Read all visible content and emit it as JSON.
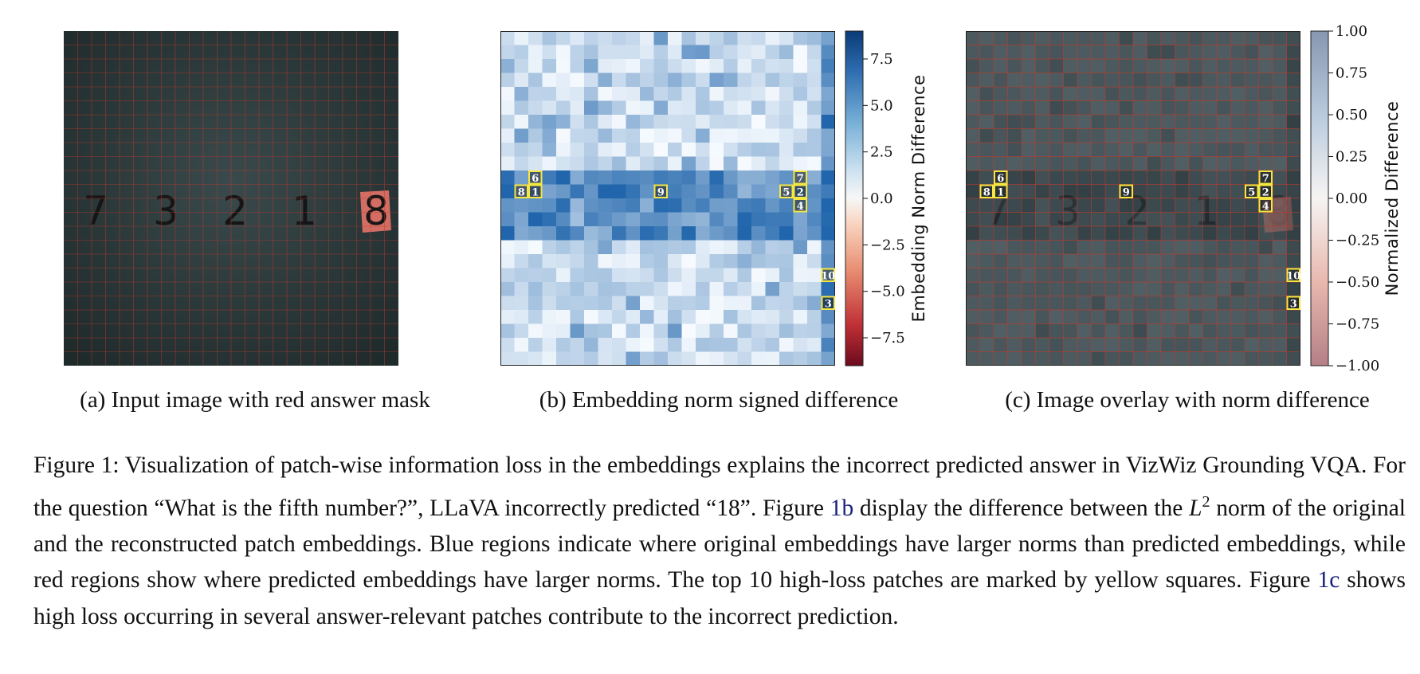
{
  "panels": {
    "a": {
      "caption": "(a) Input image with red answer mask",
      "digits": [
        "7",
        "3",
        "2",
        "1",
        "8"
      ],
      "masked_digit_index": 4
    },
    "b": {
      "caption": "(b) Embedding norm signed difference",
      "colorbar": {
        "label": "Embedding Norm Difference",
        "ticks": [
          "7.5",
          "5.0",
          "2.5",
          "0.0",
          "−2.5",
          "−5.0",
          "−7.5"
        ],
        "tick_values": [
          7.5,
          5.0,
          2.5,
          0.0,
          -2.5,
          -5.0,
          -7.5
        ],
        "range": [
          -9,
          9
        ],
        "colormap": "RdBu"
      }
    },
    "c": {
      "caption": "(c) Image overlay with norm difference",
      "colorbar": {
        "label": "Normalized Difference",
        "ticks": [
          "1.00",
          "0.75",
          "0.50",
          "0.25",
          "0.00",
          "−0.25",
          "−0.50",
          "−0.75",
          "−1.00"
        ],
        "tick_values": [
          1.0,
          0.75,
          0.5,
          0.25,
          0.0,
          -0.25,
          -0.5,
          -0.75,
          -1.0
        ],
        "range": [
          -1,
          1
        ],
        "colormap": "RdBu (alpha)"
      }
    },
    "top_patches": [
      "1",
      "2",
      "3",
      "4",
      "5",
      "6",
      "7",
      "8",
      "9",
      "10"
    ]
  },
  "figure_caption": {
    "p1": "Figure 1: Visualization of patch-wise information loss in the embeddings explains the incorrect predicted answer in VizWiz Grounding VQA. For the question “What is the fifth number?”, LLaVA incorrectly predicted “18”.",
    "fig_word_1": "Figure",
    "ref_1b": "1b",
    "p2a": "display the difference between the",
    "math_L": "L",
    "math_sup": "2",
    "p2b": "norm of the original and the reconstructed patch embeddings. Blue regions indicate where original embeddings have larger norms than predicted embeddings, while red regions show where predicted embeddings have larger norms. The top 10 high-loss patches are marked by yellow squares.",
    "fig_word_2": "Figure",
    "ref_1c": "1c",
    "p3": "shows high loss occurring in several answer-relevant patches contribute to the incorrect prediction."
  },
  "colors": {
    "grid_red": "#c0392b",
    "marker_yellow": "#f5e642",
    "mask_red": "#e57368",
    "dark_bg": "#2d3a3c"
  }
}
